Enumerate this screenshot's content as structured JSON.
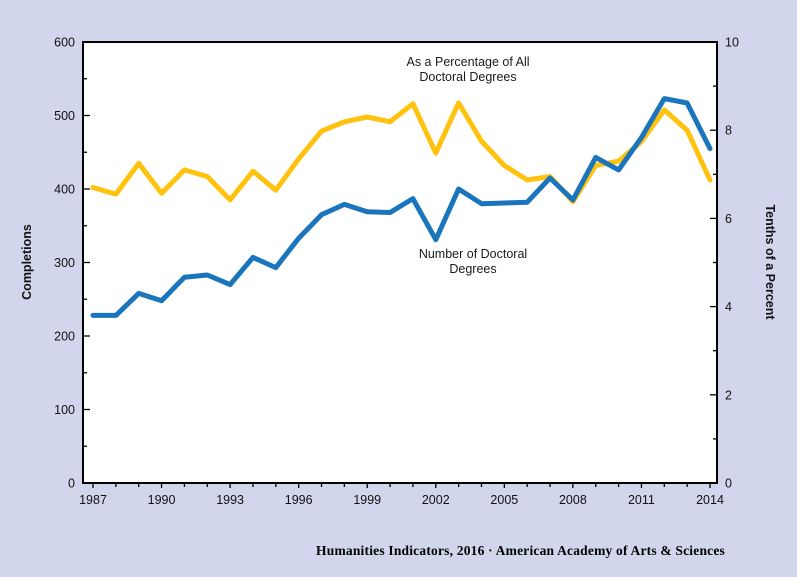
{
  "page": {
    "background_color": "#d2d6ec",
    "plot_background_color": "#ffffff",
    "axis_color": "#000000"
  },
  "footer": {
    "text": "Humanities Indicators, 2016 · American Academy of Arts & Sciences"
  },
  "chart_data": {
    "type": "line",
    "x": [
      1987,
      1988,
      1989,
      1990,
      1991,
      1992,
      1993,
      1994,
      1995,
      1996,
      1997,
      1998,
      1999,
      2000,
      2001,
      2002,
      2003,
      2004,
      2005,
      2006,
      2007,
      2008,
      2009,
      2010,
      2011,
      2012,
      2013,
      2014
    ],
    "series": [
      {
        "name": "As a Percentage of All Doctoral Degrees",
        "axis": "right",
        "color": "#FFC20E",
        "values": [
          6.7,
          6.55,
          7.25,
          6.57,
          7.1,
          6.95,
          6.42,
          7.07,
          6.64,
          7.35,
          7.98,
          8.19,
          8.3,
          8.19,
          8.6,
          7.48,
          8.62,
          7.75,
          7.2,
          6.87,
          6.95,
          6.38,
          7.2,
          7.3,
          7.74,
          8.46,
          8.0,
          6.87
        ]
      },
      {
        "name": "Number of Doctoral Degrees",
        "axis": "left",
        "color": "#1B75BC",
        "values": [
          228,
          228,
          258,
          248,
          280,
          283,
          270,
          307,
          293,
          333,
          365,
          379,
          369,
          368,
          387,
          331,
          400,
          380,
          381,
          382,
          415,
          385,
          443,
          426,
          470,
          523,
          517,
          455
        ]
      }
    ],
    "left_axis": {
      "label": "Completions",
      "min": 0,
      "max": 600,
      "major_step": 100,
      "minor_step": 50,
      "tick_labels": [
        "0",
        "100",
        "200",
        "300",
        "400",
        "500",
        "600"
      ]
    },
    "right_axis": {
      "label": "Tenths of a Percent",
      "min": 0,
      "max": 10,
      "major_step": 2,
      "minor_step": 1,
      "tick_labels": [
        "0",
        "2",
        "4",
        "6",
        "8",
        "10"
      ]
    },
    "x_axis": {
      "min": 1987,
      "max": 2014,
      "tick_step": 1,
      "label_step": 3,
      "tick_labels": [
        "1987",
        "1990",
        "1993",
        "1996",
        "1999",
        "2002",
        "2005",
        "2008",
        "2011",
        "2014"
      ]
    },
    "annotations": [
      {
        "lines": [
          "As a Percentage of All",
          "Doctoral Degrees"
        ],
        "x": 468,
        "y": 66,
        "line_height": 15
      },
      {
        "lines": [
          "Number of Doctoral",
          "Degrees"
        ],
        "x": 473,
        "y": 258,
        "line_height": 15
      }
    ],
    "grid": false,
    "legend_position": "none",
    "title": ""
  }
}
